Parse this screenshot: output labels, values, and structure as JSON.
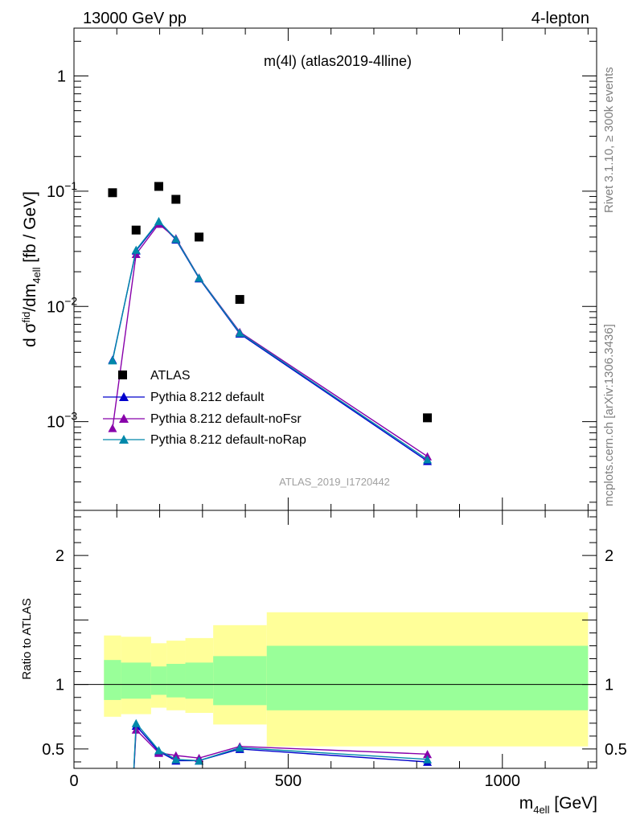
{
  "header": {
    "left": "13000 GeV pp",
    "right": "4-lepton"
  },
  "plot_title": "m(4l) (atlas2019-4lline)",
  "side_labels": {
    "rivet": "Rivet 3.1.10, ≥ 300k events",
    "mcplots": "mcplots.cern.ch [arXiv:1306.3436]"
  },
  "watermark": "ATLAS_2019_I1720442",
  "ratio_ylabel": "Ratio to ATLAS",
  "colors": {
    "default": "#0000cc",
    "noFsr": "#8800aa",
    "noRap": "#0088aa",
    "band_inner": "#99ff99",
    "band_outer": "#ffff99"
  },
  "chart_data": [
    {
      "type": "line",
      "panel": "main",
      "yscale": "log",
      "xlabel": "m4ell [GeV]",
      "ylabel": "d σfid4ell/dm4ell [fb / GeV]",
      "xlim": [
        0,
        1220
      ],
      "ylim": [
        0.00017,
        2.6
      ],
      "y_ticks": [
        {
          "value": 1,
          "label": "1"
        },
        {
          "value": 0.1,
          "label": "10",
          "exp": "−1"
        },
        {
          "value": 0.01,
          "label": "10",
          "exp": "−2"
        },
        {
          "value": 0.001,
          "label": "10",
          "exp": "−3"
        }
      ],
      "data_series": {
        "name": "ATLAS",
        "x": [
          90,
          145,
          198,
          238,
          292,
          387,
          825
        ],
        "y": [
          0.097,
          0.046,
          0.11,
          0.085,
          0.04,
          0.0115,
          0.00108
        ]
      },
      "series": [
        {
          "name": "Pythia 8.212 default",
          "x": [
            90,
            145,
            198,
            238,
            292,
            387,
            825
          ],
          "y": [
            0.00345,
            0.0305,
            0.054,
            0.038,
            0.0175,
            0.0058,
            0.000455
          ]
        },
        {
          "name": "Pythia 8.212 default-noFsr",
          "x": [
            90,
            145,
            198,
            238,
            292,
            387,
            825
          ],
          "y": [
            0.00088,
            0.0285,
            0.052,
            0.039,
            0.0178,
            0.006,
            0.0005
          ]
        },
        {
          "name": "Pythia 8.212 default-noRap",
          "x": [
            90,
            145,
            198,
            238,
            292,
            387,
            825
          ],
          "y": [
            0.0034,
            0.031,
            0.055,
            0.0385,
            0.0177,
            0.0059,
            0.00047
          ]
        }
      ]
    },
    {
      "type": "line",
      "panel": "ratio",
      "xlabel": "m4ell [GeV]",
      "ylabel": "Ratio to ATLAS",
      "xlim": [
        0,
        1220
      ],
      "ylim": [
        0.35,
        2.35
      ],
      "x_ticks": [
        0,
        500,
        1000
      ],
      "y_ticks": [
        0.5,
        1,
        2
      ],
      "bands": [
        {
          "x0": 70,
          "x1": 110,
          "inner": [
            0.88,
            1.19
          ],
          "outer": [
            0.75,
            1.38
          ]
        },
        {
          "x0": 110,
          "x1": 180,
          "inner": [
            0.89,
            1.17
          ],
          "outer": [
            0.77,
            1.37
          ]
        },
        {
          "x0": 180,
          "x1": 216,
          "inner": [
            0.92,
            1.14
          ],
          "outer": [
            0.82,
            1.32
          ]
        },
        {
          "x0": 216,
          "x1": 260,
          "inner": [
            0.9,
            1.16
          ],
          "outer": [
            0.8,
            1.34
          ]
        },
        {
          "x0": 260,
          "x1": 325,
          "inner": [
            0.89,
            1.17
          ],
          "outer": [
            0.78,
            1.36
          ]
        },
        {
          "x0": 325,
          "x1": 450,
          "inner": [
            0.84,
            1.22
          ],
          "outer": [
            0.69,
            1.46
          ]
        },
        {
          "x0": 450,
          "x1": 1200,
          "inner": [
            0.8,
            1.3
          ],
          "outer": [
            0.52,
            1.56
          ]
        }
      ],
      "series": [
        {
          "name": "Pythia 8.212 default",
          "x": [
            136,
            145,
            198,
            238,
            292,
            387,
            825
          ],
          "y": [
            0.1,
            0.68,
            0.48,
            0.41,
            0.41,
            0.5,
            0.4
          ]
        },
        {
          "name": "Pythia 8.212 default-noFsr",
          "x": [
            136,
            145,
            198,
            238,
            292,
            387,
            825
          ],
          "y": [
            0.1,
            0.65,
            0.47,
            0.45,
            0.43,
            0.52,
            0.46
          ]
        },
        {
          "name": "Pythia 8.212 default-noRap",
          "x": [
            136,
            145,
            198,
            238,
            292,
            387,
            825
          ],
          "y": [
            0.1,
            0.7,
            0.49,
            0.42,
            0.41,
            0.51,
            0.42
          ]
        }
      ]
    }
  ]
}
